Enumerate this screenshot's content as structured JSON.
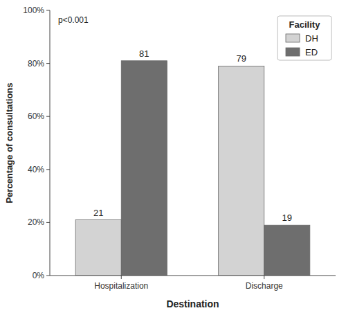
{
  "chart_data": {
    "type": "bar",
    "xlabel": "Destination",
    "ylabel": "Percentage of consultations",
    "annotation": "p<0.001",
    "legend_title": "Facility",
    "categories": [
      "Hospitalization",
      "Discharge"
    ],
    "series": [
      {
        "name": "DH",
        "color": "#d3d3d3",
        "values": [
          21,
          79
        ]
      },
      {
        "name": "ED",
        "color": "#6e6e6e",
        "values": [
          81,
          19
        ]
      }
    ],
    "ylim": [
      0,
      100
    ],
    "yticks": [
      {
        "value": 0,
        "label": "0%"
      },
      {
        "value": 20,
        "label": "20%"
      },
      {
        "value": 40,
        "label": "40%"
      },
      {
        "value": 60,
        "label": "60%"
      },
      {
        "value": 80,
        "label": "80%"
      },
      {
        "value": 100,
        "label": "100%"
      }
    ],
    "grid": false,
    "legend": "upper right",
    "data_labels": true
  }
}
